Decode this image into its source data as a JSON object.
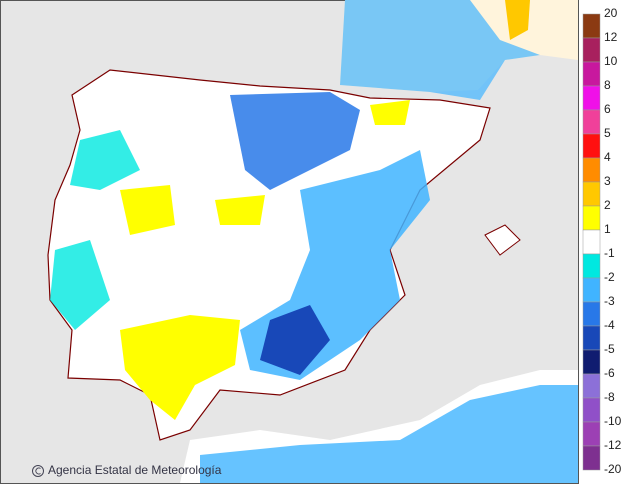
{
  "map": {
    "attribution": "Agencia Estatal de Meteorología",
    "legend": {
      "labels": [
        20,
        12,
        10,
        8,
        6,
        5,
        4,
        3,
        2,
        1,
        -1,
        -2,
        -3,
        -4,
        -5,
        -6,
        -8,
        -10,
        -12,
        -20
      ],
      "colors": [
        "#8b3a12",
        "#a8205e",
        "#c8189e",
        "#f010e8",
        "#f0409a",
        "#ff1010",
        "#ff8c00",
        "#ffc800",
        "#ffff00",
        "#ffffff",
        "#00e8e0",
        "#40b4ff",
        "#2878e8",
        "#1848b8",
        "#101c70",
        "#8c70d8",
        "#9050c8",
        "#9c40b4",
        "#7e3090"
      ]
    }
  }
}
